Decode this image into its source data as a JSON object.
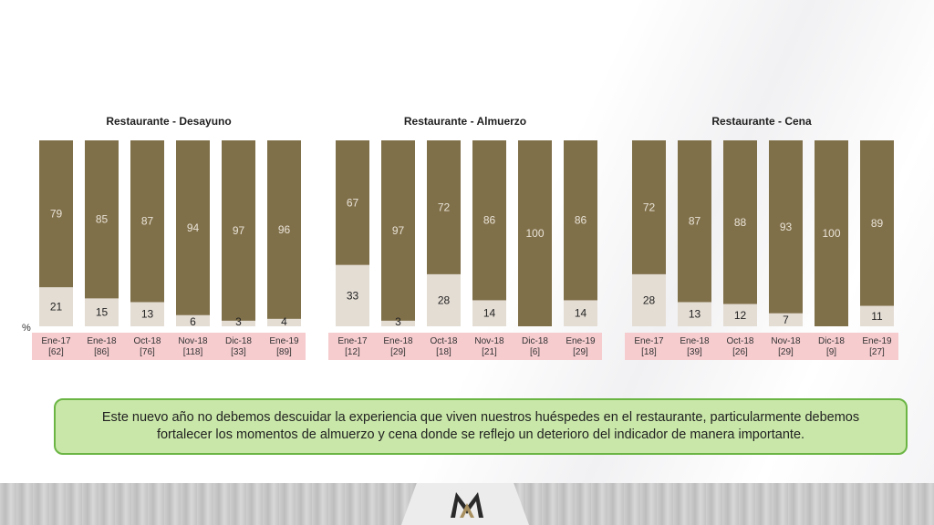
{
  "chart_data": [
    {
      "type": "bar",
      "title": "Restaurante - Desayuno",
      "categories": [
        "Ene-17",
        "Ene-18",
        "Oct-18",
        "Nov-18",
        "Dic-18",
        "Ene-19"
      ],
      "counts": [
        "[62]",
        "[86]",
        "[76]",
        "[118]",
        "[33]",
        "[89]"
      ],
      "series": [
        {
          "values": [
            79,
            85,
            87,
            94,
            97,
            96
          ]
        },
        {
          "values": [
            21,
            15,
            13,
            6,
            3,
            4
          ]
        }
      ],
      "ylim": [
        0,
        100
      ]
    },
    {
      "type": "bar",
      "title": "Restaurante - Almuerzo",
      "categories": [
        "Ene-17",
        "Ene-18",
        "Oct-18",
        "Nov-18",
        "Dic-18",
        "Ene-19"
      ],
      "counts": [
        "[12]",
        "[29]",
        "[18]",
        "[21]",
        "[6]",
        "[29]"
      ],
      "series": [
        {
          "values": [
            67,
            97,
            72,
            86,
            100,
            86
          ]
        },
        {
          "values": [
            33,
            3,
            28,
            14,
            null,
            14
          ]
        }
      ],
      "ylim": [
        0,
        100
      ]
    },
    {
      "type": "bar",
      "title": "Restaurante - Cena",
      "categories": [
        "Ene-17",
        "Ene-18",
        "Oct-18",
        "Nov-18",
        "Dic-18",
        "Ene-19"
      ],
      "counts": [
        "[18]",
        "[39]",
        "[26]",
        "[29]",
        "[9]",
        "[27]"
      ],
      "series": [
        {
          "values": [
            72,
            87,
            88,
            93,
            100,
            89
          ]
        },
        {
          "values": [
            28,
            13,
            12,
            7,
            null,
            11
          ]
        }
      ],
      "ylim": [
        0,
        100
      ]
    }
  ],
  "percent_label": "%",
  "note": "Este nuevo año no debemos descuidar la experiencia que viven nuestros huéspedes en el restaurante, particularmente debemos fortalecer los momentos de almuerzo y cena donde se reflejo un deterioro del indicador de manera importante.",
  "colors": {
    "top": "#80704a",
    "bottom": "#e4ddd4",
    "label_bg": "#f6cccf",
    "note_bg": "#c9e7a8",
    "note_border": "#6bb545"
  },
  "logo_icon": "mm-monogram-icon"
}
